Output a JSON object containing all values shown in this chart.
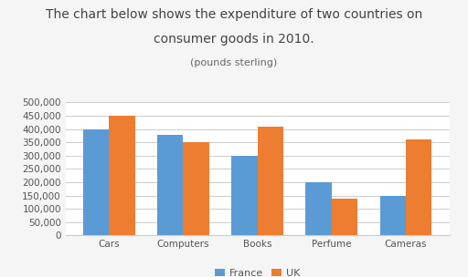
{
  "title_line1": "The chart below shows the expenditure of two countries on",
  "title_line2": "consumer goods in 2010.",
  "subtitle": "(pounds sterling)",
  "categories": [
    "Cars",
    "Computers",
    "Books",
    "Perfume",
    "Cameras"
  ],
  "france": [
    400000,
    380000,
    300000,
    200000,
    150000
  ],
  "uk": [
    450000,
    350000,
    410000,
    140000,
    360000
  ],
  "france_color": "#5B9BD5",
  "uk_color": "#ED7D31",
  "ylim": [
    0,
    500000
  ],
  "yticks": [
    0,
    50000,
    100000,
    150000,
    200000,
    250000,
    300000,
    350000,
    400000,
    450000,
    500000
  ],
  "background_color": "#F5F5F5",
  "plot_bg_color": "#FFFFFF",
  "legend_labels": [
    "France",
    "UK"
  ],
  "bar_width": 0.35,
  "title_fontsize": 10,
  "subtitle_fontsize": 8,
  "axis_fontsize": 7.5,
  "legend_fontsize": 8
}
